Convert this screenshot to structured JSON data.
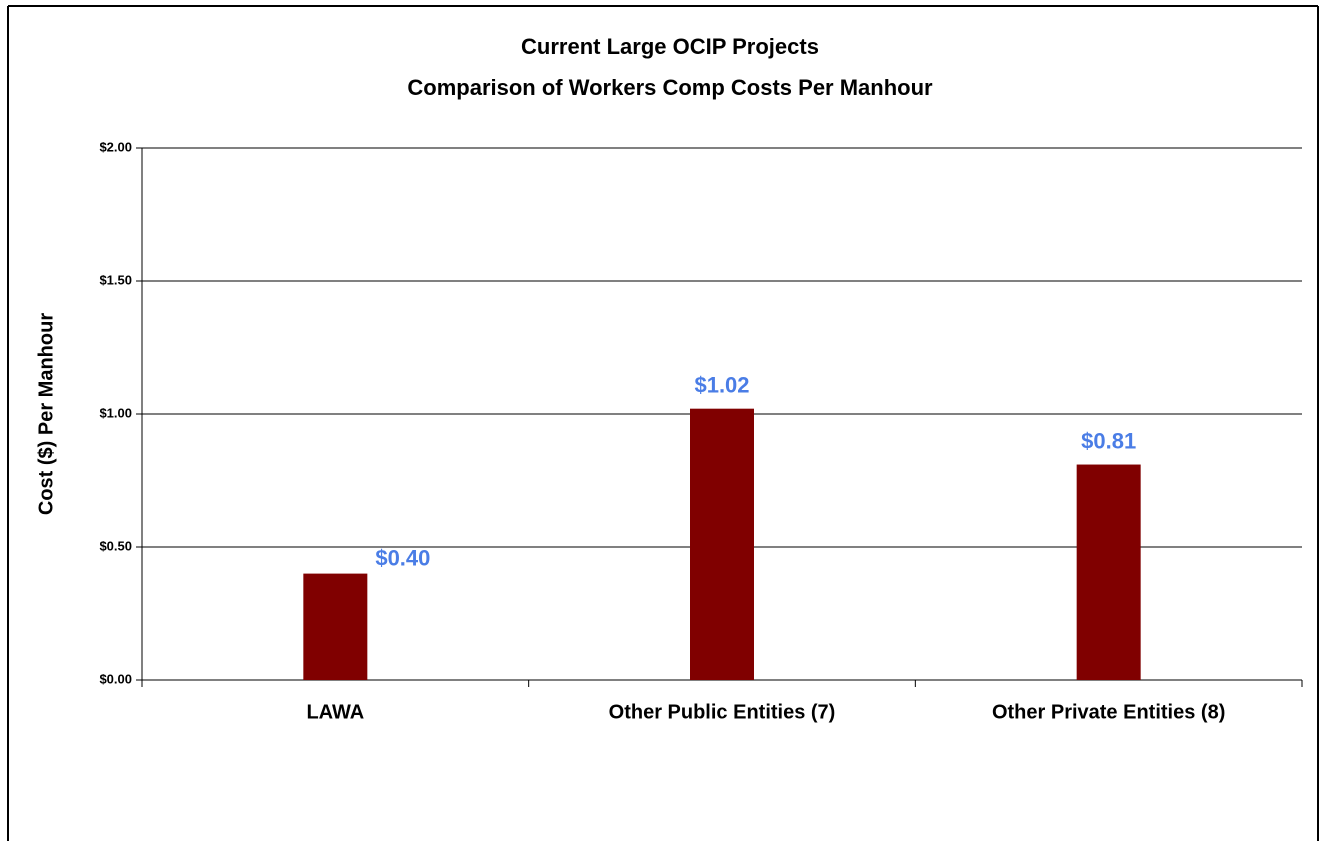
{
  "chart_data": {
    "type": "bar",
    "title": "Current Large OCIP Projects",
    "subtitle": "Comparison of Workers Comp Costs Per Manhour",
    "y_label": "Cost ($) Per Manhour",
    "categories": [
      "LAWA",
      "Other Public Entities (7)",
      "Other Private Entities (8)"
    ],
    "values": [
      0.4,
      1.02,
      0.81
    ],
    "value_labels": [
      "$0.40",
      "$1.02",
      "$0.81"
    ],
    "color": "#800000",
    "label_color": "#4a7de6",
    "ylim": [
      0,
      2
    ],
    "yticks": [
      {
        "value": 0,
        "label": "$0.00"
      },
      {
        "value": 0.5,
        "label": "$0.50"
      },
      {
        "value": 1,
        "label": "$1.00"
      },
      {
        "value": 1.5,
        "label": "$1.50"
      },
      {
        "value": 2,
        "label": "$2.00"
      }
    ],
    "grid": true
  }
}
